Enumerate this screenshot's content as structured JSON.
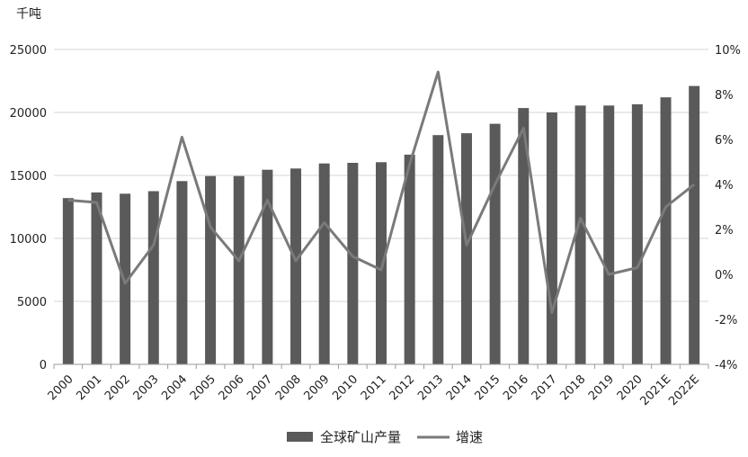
{
  "chart_data": {
    "type": "bar",
    "y_unit_label": "千吨",
    "categories": [
      "2000",
      "2001",
      "2002",
      "2003",
      "2004",
      "2005",
      "2006",
      "2007",
      "2008",
      "2009",
      "2010",
      "2011",
      "2012",
      "2013",
      "2014",
      "2015",
      "2016",
      "2017",
      "2018",
      "2019",
      "2020",
      "2021E",
      "2022E"
    ],
    "series": [
      {
        "name": "全球矿山产量",
        "type": "bar",
        "axis": "left",
        "values": [
          13200,
          13650,
          13550,
          13750,
          14550,
          14950,
          14950,
          15450,
          15550,
          15950,
          16000,
          16050,
          16650,
          18200,
          18350,
          19100,
          20350,
          20000,
          20550,
          20550,
          20650,
          21200,
          22100
        ]
      },
      {
        "name": "增速",
        "type": "line",
        "axis": "right",
        "values": [
          3.3,
          3.2,
          -0.4,
          1.3,
          6.1,
          2.1,
          0.6,
          3.3,
          0.6,
          2.3,
          0.8,
          0.2,
          4.9,
          9.0,
          1.3,
          4.0,
          6.5,
          -1.7,
          2.5,
          0.0,
          0.3,
          3.0,
          4.0
        ]
      }
    ],
    "y_left": {
      "min": 0,
      "max": 25000,
      "ticks": [
        0,
        5000,
        10000,
        15000,
        20000,
        25000
      ],
      "tick_labels": [
        "0",
        "5000",
        "10000",
        "15000",
        "20000",
        "25000"
      ]
    },
    "y_right": {
      "min": -4,
      "max": 10,
      "ticks": [
        -4,
        -2,
        0,
        2,
        4,
        6,
        8,
        10
      ],
      "tick_labels": [
        "-4%",
        "-2%",
        "0%",
        "2%",
        "4%",
        "6%",
        "8%",
        "10%"
      ]
    },
    "grid": true,
    "legend_position": "bottom",
    "colors": {
      "bar": "#5a5a5a",
      "line": "#7a7a7a",
      "grid": "#d6d6d6",
      "axis": "#9a9a9a"
    }
  }
}
